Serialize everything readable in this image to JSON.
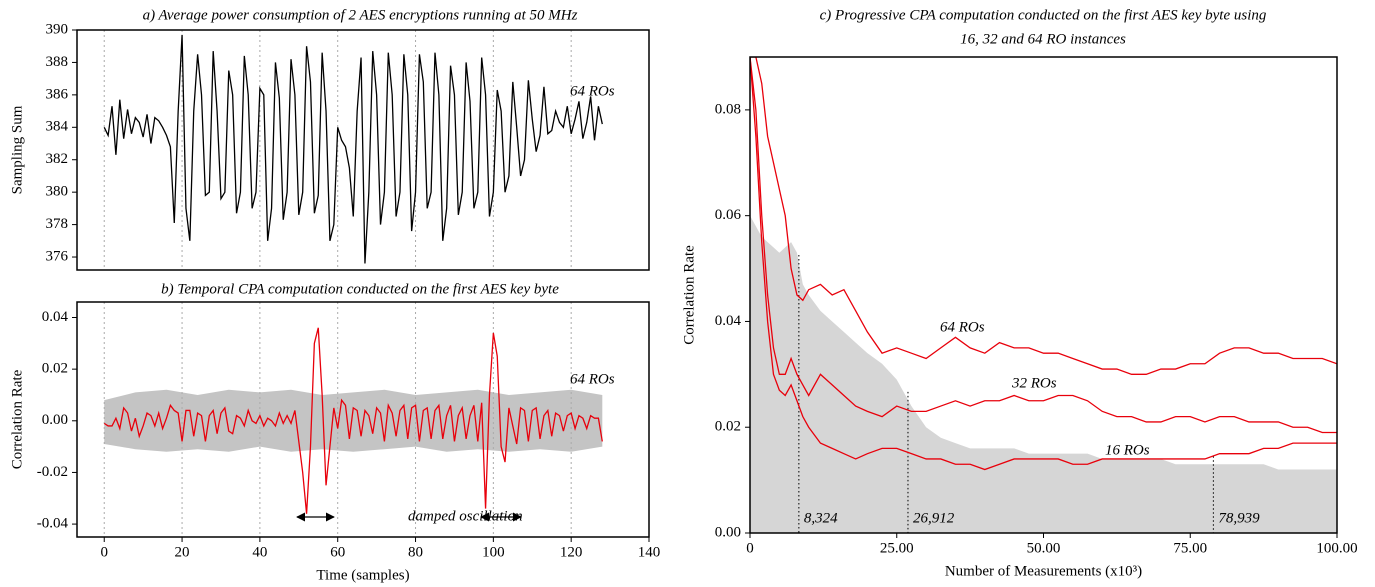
{
  "chart_data": [
    {
      "type": "line",
      "title": "a) Average power consumption of 2 AES encryptions running at 50 MHz",
      "ylabel": "Sampling Sum",
      "xlim": [
        -7,
        140
      ],
      "ylim": [
        375.2,
        390
      ],
      "yticks": [
        376,
        378,
        380,
        382,
        384,
        386,
        388,
        390
      ],
      "xgrid": [
        0,
        20,
        40,
        60,
        80,
        100,
        120
      ],
      "annotations": [
        "64 ROs"
      ],
      "x": [
        0,
        1,
        2,
        3,
        4,
        5,
        6,
        7,
        8,
        9,
        10,
        11,
        12,
        13,
        14,
        15,
        16,
        17,
        18,
        19,
        20,
        21,
        22,
        23,
        24,
        25,
        26,
        27,
        28,
        29,
        30,
        31,
        32,
        33,
        34,
        35,
        36,
        37,
        38,
        39,
        40,
        41,
        42,
        43,
        44,
        45,
        46,
        47,
        48,
        49,
        50,
        51,
        52,
        53,
        54,
        55,
        56,
        57,
        58,
        59,
        60,
        61,
        62,
        63,
        64,
        65,
        66,
        67,
        68,
        69,
        70,
        71,
        72,
        73,
        74,
        75,
        76,
        77,
        78,
        79,
        80,
        81,
        82,
        83,
        84,
        85,
        86,
        87,
        88,
        89,
        90,
        91,
        92,
        93,
        94,
        95,
        96,
        97,
        98,
        99,
        100,
        101,
        102,
        103,
        104,
        105,
        106,
        107,
        108,
        109,
        110,
        111,
        112,
        113,
        114,
        115,
        116,
        117,
        118,
        119,
        120,
        121,
        122,
        123,
        124,
        125,
        126,
        127,
        128
      ],
      "series": [
        {
          "color": "#000000",
          "values": [
            384,
            383.5,
            385.3,
            382.3,
            385.7,
            383.3,
            385.1,
            383.6,
            384.6,
            384.3,
            383.4,
            384.8,
            383,
            384.6,
            384.4,
            384,
            383.5,
            382.8,
            378.1,
            385,
            389.7,
            379,
            377,
            385,
            388.5,
            386,
            379.8,
            380,
            388.7,
            385,
            379.6,
            380,
            387.5,
            386,
            378.7,
            380,
            388.4,
            386,
            379,
            380,
            386.4,
            386,
            377,
            379,
            388,
            385.8,
            378.3,
            380,
            388.2,
            386,
            378.6,
            380,
            389,
            386.8,
            378.7,
            379.8,
            388.6,
            385,
            377,
            378,
            384,
            383.2,
            382.8,
            381.5,
            378.5,
            385,
            388.3,
            375.6,
            380,
            388.7,
            386,
            378,
            380,
            388.6,
            386,
            378.5,
            380,
            388.5,
            386,
            377.6,
            380,
            388.5,
            386.8,
            379,
            380,
            388.6,
            386,
            377,
            379,
            387.8,
            386,
            378.6,
            380,
            388,
            385.6,
            379,
            380,
            388.3,
            386,
            378.5,
            380,
            386.3,
            385,
            380,
            381,
            386.8,
            384,
            381,
            382,
            386.9,
            384.5,
            382.5,
            383.5,
            386.5,
            383.6,
            383.8,
            385,
            384.3,
            384,
            385.3,
            383.6,
            384.5,
            385.6,
            383.3,
            384.3,
            385.9,
            383.2,
            385.3,
            384.2
          ]
        }
      ]
    },
    {
      "type": "line",
      "title": "b) Temporal CPA computation conducted on the first AES key byte",
      "ylabel": "Correlation Rate",
      "xlabel": "Time (samples)",
      "xlim": [
        -7,
        140
      ],
      "ylim": [
        -0.045,
        0.046
      ],
      "xticks": [
        0,
        20,
        40,
        60,
        80,
        100,
        120,
        140
      ],
      "yticks": [
        -0.04,
        -0.02,
        {
          "value": 0,
          "label": "0.00"
        },
        0.02,
        0.04
      ],
      "grid": "x",
      "annotations": [
        "64 ROs",
        "damped oscillation"
      ],
      "band": {
        "color": "#c4c4c4",
        "x": [
          0,
          8,
          16,
          24,
          32,
          40,
          48,
          56,
          64,
          72,
          80,
          88,
          96,
          104,
          112,
          120,
          128
        ],
        "upper": [
          0.008,
          0.011,
          0.012,
          0.01,
          0.012,
          0.011,
          0.012,
          0.01,
          0.011,
          0.012,
          0.01,
          0.011,
          0.012,
          0.01,
          0.011,
          0.012,
          0.01
        ],
        "lower": [
          -0.009,
          -0.011,
          -0.012,
          -0.011,
          -0.012,
          -0.01,
          -0.012,
          -0.011,
          -0.012,
          -0.011,
          -0.01,
          -0.012,
          -0.011,
          -0.012,
          -0.011,
          -0.012,
          -0.01
        ]
      },
      "x": [
        0,
        1,
        2,
        3,
        4,
        5,
        6,
        7,
        8,
        9,
        10,
        11,
        12,
        13,
        14,
        15,
        16,
        17,
        18,
        19,
        20,
        21,
        22,
        23,
        24,
        25,
        26,
        27,
        28,
        29,
        30,
        31,
        32,
        33,
        34,
        35,
        36,
        37,
        38,
        39,
        40,
        41,
        42,
        43,
        44,
        45,
        46,
        47,
        48,
        49,
        50,
        51,
        52,
        53,
        54,
        55,
        56,
        57,
        58,
        59,
        60,
        61,
        62,
        63,
        64,
        65,
        66,
        67,
        68,
        69,
        70,
        71,
        72,
        73,
        74,
        75,
        76,
        77,
        78,
        79,
        80,
        81,
        82,
        83,
        84,
        85,
        86,
        87,
        88,
        89,
        90,
        91,
        92,
        93,
        94,
        95,
        96,
        97,
        98,
        99,
        100,
        101,
        102,
        103,
        104,
        105,
        106,
        107,
        108,
        109,
        110,
        111,
        112,
        113,
        114,
        115,
        116,
        117,
        118,
        119,
        120,
        121,
        122,
        123,
        124,
        125,
        126,
        127,
        128
      ],
      "series": [
        {
          "color": "#e8000b",
          "values": [
            -0.001,
            -0.002,
            -0.002,
            0.001,
            -0.003,
            0.005,
            0.003,
            -0.004,
            0.001,
            -0.006,
            -0.002,
            0.003,
            0.002,
            -0.002,
            0.003,
            -0.003,
            0.001,
            0.006,
            0.004,
            0.003,
            -0.008,
            0.004,
            0.004,
            -0.006,
            0.003,
            0.002,
            -0.008,
            0.002,
            0.004,
            -0.005,
            0.003,
            0.005,
            -0.004,
            -0.005,
            0.002,
            0.001,
            -0.002,
            0.004,
            0,
            -0.001,
            0.002,
            -0.002,
            0.001,
            0,
            -0.002,
            0.003,
            -0.001,
            0.002,
            -0.001,
            0.004,
            -0.008,
            -0.02,
            -0.036,
            -0.01,
            0.03,
            0.036,
            0.01,
            -0.025,
            -0.01,
            0.005,
            -0.003,
            0.008,
            0.006,
            -0.007,
            0.005,
            0.004,
            -0.006,
            0.004,
            0.002,
            -0.005,
            0.005,
            0.003,
            -0.008,
            0.006,
            0.003,
            -0.006,
            0.004,
            0.006,
            -0.007,
            0.005,
            0.006,
            -0.008,
            0.004,
            0.005,
            -0.007,
            0.004,
            0.006,
            -0.007,
            0.002,
            0.006,
            -0.008,
            0.002,
            0.005,
            -0.007,
            0.002,
            0.006,
            -0.008,
            0.007,
            -0.034,
            0.01,
            0.034,
            0.025,
            -0.01,
            -0.016,
            0.005,
            -0.002,
            -0.009,
            0.005,
            0.004,
            -0.008,
            0.004,
            0.005,
            -0.007,
            0.002,
            0.004,
            -0.006,
            0.003,
            0.002,
            -0.004,
            0.002,
            0.003,
            -0.003,
            0.002,
            0.001,
            -0.003,
            0.002,
            0.001,
            0.001,
            -0.008
          ]
        }
      ]
    },
    {
      "type": "line",
      "title": [
        "c) Progressive CPA computation conducted on the first AES key byte using",
        "16, 32 and 64  RO instances"
      ],
      "ylabel": "Correlation Rate",
      "xlabel": "Number of Measurements (x10³)",
      "xlim": [
        0,
        100
      ],
      "ylim": [
        0,
        0.09
      ],
      "xticks": [
        0,
        {
          "value": 25,
          "label": "25.00"
        },
        {
          "value": 50,
          "label": "50.00"
        },
        {
          "value": 75,
          "label": "75.00"
        },
        {
          "value": 100,
          "label": "100.00"
        }
      ],
      "yticks": [
        {
          "value": 0,
          "label": "0.00"
        },
        0.02,
        0.04,
        0.06,
        0.08
      ],
      "markers": [
        {
          "value": 8.324,
          "label": "8,324"
        },
        {
          "value": 26.912,
          "label": "26,912"
        },
        {
          "value": 78.939,
          "label": "78,939"
        }
      ],
      "x": [
        0,
        1,
        2,
        3,
        4,
        5,
        6,
        7,
        8,
        9,
        10,
        12,
        14,
        16,
        18,
        20,
        22.5,
        25,
        27.5,
        30,
        32.5,
        35,
        37.5,
        40,
        42.5,
        45,
        47.5,
        50,
        52.5,
        55,
        57.5,
        60,
        62.5,
        65,
        67.5,
        70,
        72.5,
        75,
        77.5,
        80,
        82.5,
        85,
        87.5,
        90,
        92.5,
        95,
        97.5,
        100
      ],
      "area": {
        "color": "#d6d6d6",
        "values": [
          0.06,
          0.058,
          0.056,
          0.055,
          0.054,
          0.053,
          0.054,
          0.055,
          0.053,
          0.047,
          0.045,
          0.042,
          0.04,
          0.038,
          0.036,
          0.034,
          0.032,
          0.029,
          0.024,
          0.02,
          0.018,
          0.017,
          0.016,
          0.016,
          0.016,
          0.016,
          0.015,
          0.015,
          0.015,
          0.015,
          0.015,
          0.014,
          0.014,
          0.014,
          0.014,
          0.014,
          0.013,
          0.013,
          0.013,
          0.013,
          0.013,
          0.013,
          0.013,
          0.012,
          0.012,
          0.012,
          0.012,
          0.012
        ]
      },
      "series": [
        {
          "name": "64 ROs",
          "color": "#e8000b",
          "values": [
            0.09,
            0.09,
            0.085,
            0.075,
            0.07,
            0.065,
            0.06,
            0.05,
            0.045,
            0.044,
            0.046,
            0.047,
            0.045,
            0.046,
            0.042,
            0.038,
            0.034,
            0.035,
            0.034,
            0.033,
            0.035,
            0.037,
            0.035,
            0.034,
            0.036,
            0.035,
            0.035,
            0.034,
            0.034,
            0.033,
            0.032,
            0.031,
            0.031,
            0.03,
            0.03,
            0.031,
            0.031,
            0.032,
            0.032,
            0.034,
            0.035,
            0.035,
            0.034,
            0.034,
            0.033,
            0.033,
            0.033,
            0.032
          ]
        },
        {
          "name": "32 ROs",
          "color": "#e8000b",
          "values": [
            0.09,
            0.08,
            0.06,
            0.045,
            0.035,
            0.03,
            0.03,
            0.033,
            0.03,
            0.028,
            0.026,
            0.03,
            0.028,
            0.026,
            0.024,
            0.023,
            0.022,
            0.024,
            0.023,
            0.023,
            0.024,
            0.025,
            0.024,
            0.025,
            0.025,
            0.026,
            0.025,
            0.025,
            0.026,
            0.026,
            0.025,
            0.023,
            0.022,
            0.022,
            0.021,
            0.021,
            0.022,
            0.022,
            0.021,
            0.022,
            0.022,
            0.021,
            0.021,
            0.021,
            0.02,
            0.02,
            0.019,
            0.019
          ]
        },
        {
          "name": "16 ROs",
          "color": "#e8000b",
          "values": [
            0.09,
            0.075,
            0.055,
            0.04,
            0.03,
            0.027,
            0.026,
            0.028,
            0.025,
            0.022,
            0.02,
            0.017,
            0.016,
            0.015,
            0.014,
            0.015,
            0.016,
            0.016,
            0.015,
            0.014,
            0.014,
            0.013,
            0.013,
            0.012,
            0.013,
            0.014,
            0.014,
            0.014,
            0.014,
            0.013,
            0.013,
            0.014,
            0.014,
            0.014,
            0.014,
            0.014,
            0.014,
            0.014,
            0.014,
            0.015,
            0.015,
            0.015,
            0.016,
            0.016,
            0.017,
            0.017,
            0.017,
            0.017
          ]
        }
      ]
    }
  ]
}
